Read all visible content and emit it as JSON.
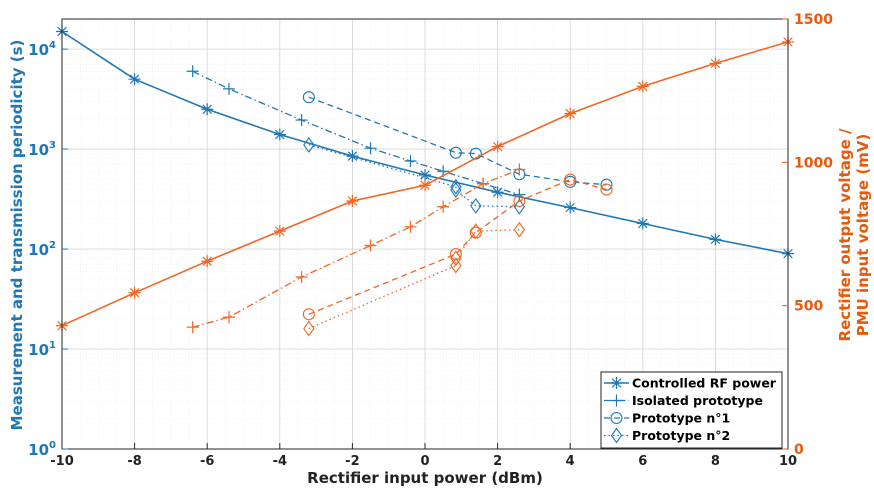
{
  "chart_data": {
    "type": "line",
    "xlabel": "Rectifier input power (dBm)",
    "ylabel_left": "Measurement and transmission periodicity (s)",
    "ylabel_right_line1": "Rectifier output voltage /",
    "ylabel_right_line2": "PMU input voltage (mV)",
    "xlim": [
      -10,
      10
    ],
    "x_ticks": [
      -10,
      -8,
      -6,
      -4,
      -2,
      0,
      2,
      4,
      6,
      8,
      10
    ],
    "y_left_scale": "log",
    "y_left_lim": [
      1,
      20000
    ],
    "y_left_ticks": [
      {
        "value": 1,
        "base": "10",
        "exp": "0"
      },
      {
        "value": 10,
        "base": "10",
        "exp": "1"
      },
      {
        "value": 100,
        "base": "10",
        "exp": "2"
      },
      {
        "value": 1000,
        "base": "10",
        "exp": "3"
      },
      {
        "value": 10000,
        "base": "10",
        "exp": "4"
      }
    ],
    "y_right_lim": [
      0,
      1500
    ],
    "y_right_ticks": [
      0,
      500,
      1000,
      1500
    ],
    "grid": true,
    "legend_position": "bottom-right",
    "colors": {
      "left_axis": "#1f77b4",
      "right_axis": "#e8590c",
      "series_blue": "#1f77b4",
      "series_orange": "#f26522"
    },
    "legend": [
      {
        "label": "Controlled RF power",
        "marker": "asterisk",
        "dash": "solid"
      },
      {
        "label": "Isolated prototype",
        "marker": "plus",
        "dash": "dashdot"
      },
      {
        "label": "Prototype n°1",
        "marker": "circle",
        "dash": "dashed"
      },
      {
        "label": "Prototype n°2",
        "marker": "diamond",
        "dash": "dotted"
      }
    ],
    "series": [
      {
        "legend_index": 0,
        "axis": "left",
        "marker": "asterisk",
        "dash": "solid",
        "x": [
          -10,
          -8,
          -6,
          -4,
          -2,
          0,
          2,
          4,
          6,
          8,
          10
        ],
        "y": [
          15000,
          5000,
          2500,
          1400,
          850,
          550,
          370,
          260,
          180,
          125,
          90
        ]
      },
      {
        "legend_index": 1,
        "axis": "left",
        "marker": "plus",
        "dash": "dashdot",
        "x": [
          -6.4,
          -5.4,
          -3.4,
          -1.5,
          -0.4,
          0.5,
          1.6,
          2.6
        ],
        "y": [
          6000,
          4000,
          1950,
          1020,
          760,
          600,
          450,
          350
        ]
      },
      {
        "legend_index": 2,
        "axis": "left",
        "marker": "circle",
        "dash": "dashed",
        "x": [
          -3.2,
          0.85,
          1.4,
          2.6,
          4.0,
          5.0
        ],
        "y": [
          3300,
          920,
          900,
          560,
          470,
          440
        ]
      },
      {
        "legend_index": 3,
        "axis": "left",
        "marker": "diamond",
        "dash": "dotted",
        "x": [
          -3.2,
          0.85,
          0.85,
          1.4,
          2.6
        ],
        "y": [
          1100,
          420,
          390,
          270,
          265
        ]
      },
      {
        "legend_index": 0,
        "axis": "right",
        "marker": "asterisk",
        "dash": "solid",
        "x": [
          -10,
          -8,
          -6,
          -4,
          -2,
          0,
          2,
          4,
          6,
          8,
          10
        ],
        "y": [
          430,
          545,
          655,
          760,
          865,
          920,
          1055,
          1170,
          1265,
          1345,
          1420
        ]
      },
      {
        "legend_index": 1,
        "axis": "right",
        "marker": "plus",
        "dash": "dashdot",
        "x": [
          -6.4,
          -5.4,
          -3.4,
          -1.5,
          -0.4,
          0.5,
          1.6,
          2.6
        ],
        "y": [
          425,
          460,
          600,
          710,
          775,
          845,
          925,
          975
        ]
      },
      {
        "legend_index": 2,
        "axis": "right",
        "marker": "circle",
        "dash": "dashed",
        "x": [
          -3.2,
          0.85,
          1.4,
          2.6,
          4.0,
          5.0
        ],
        "y": [
          470,
          680,
          755,
          865,
          940,
          905
        ]
      },
      {
        "legend_index": 3,
        "axis": "right",
        "marker": "diamond",
        "dash": "dotted",
        "x": [
          -3.2,
          0.85,
          0.85,
          1.4,
          2.6
        ],
        "y": [
          420,
          640,
          665,
          760,
          765
        ]
      }
    ]
  }
}
